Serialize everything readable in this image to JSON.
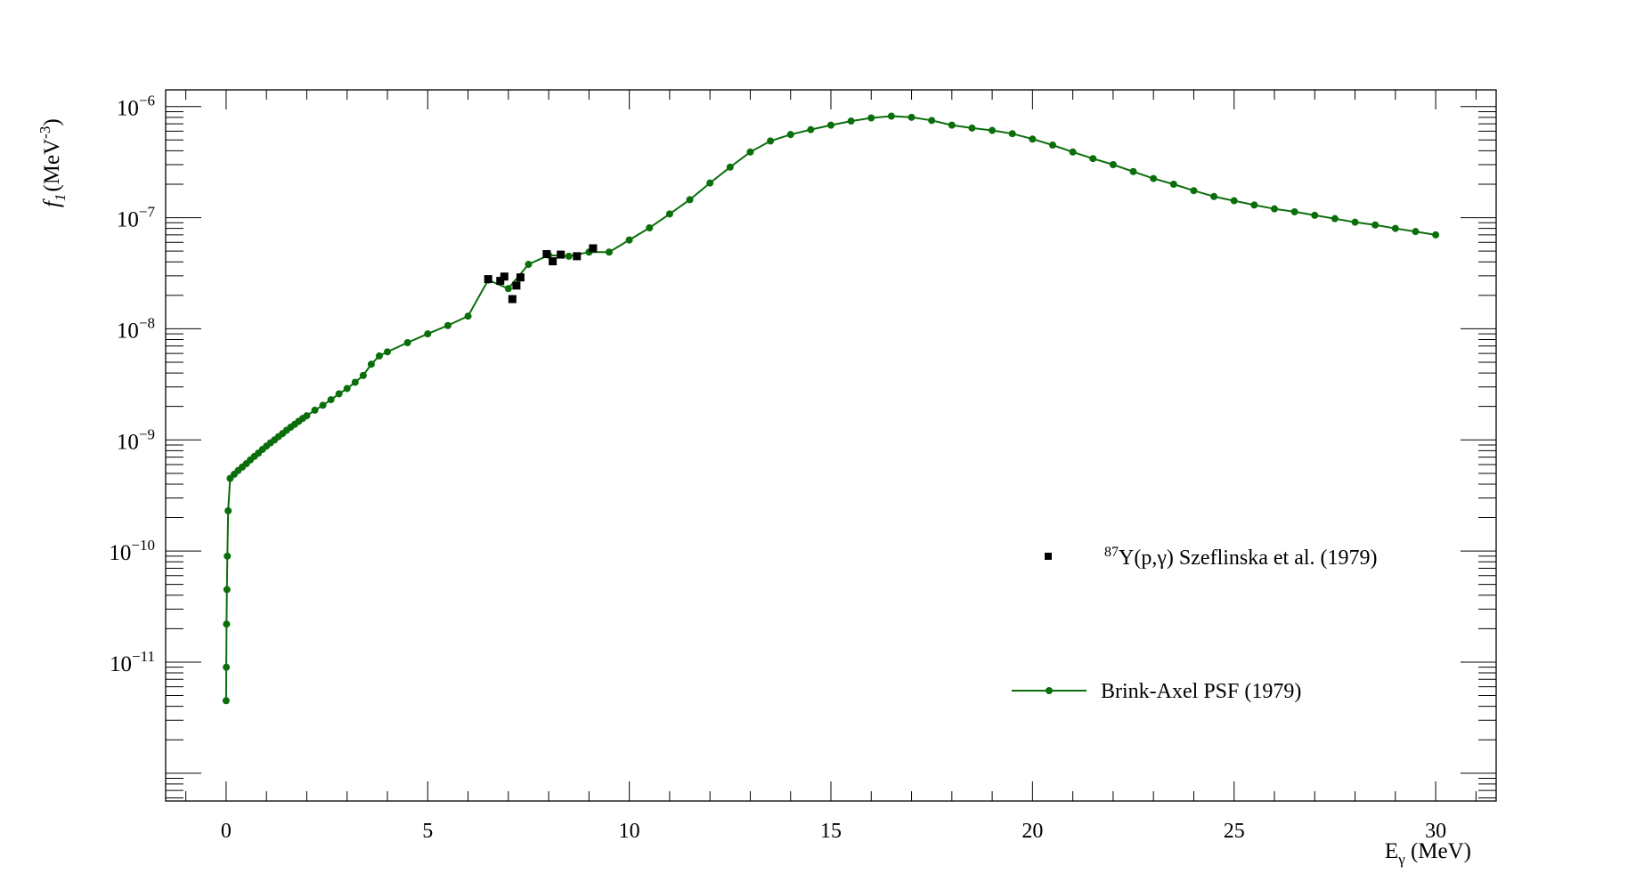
{
  "chart_data": {
    "type": "line",
    "xlabel_main": "E",
    "xlabel_sub": "γ",
    "xlabel_unit": " (MeV)",
    "ylabel_main": "f",
    "ylabel_sub": "1",
    "ylabel_unit": "(MeV",
    "ylabel_exp": "-3",
    "ylabel_close": ")",
    "xlim": [
      -1.5,
      31.5
    ],
    "ylim_log10": [
      -12.25,
      -5.85
    ],
    "y_scale": "log",
    "x_ticks": [
      "0",
      "5",
      "10",
      "15",
      "20",
      "25",
      "30"
    ],
    "y_ticks": [
      {
        "mantissa": "10",
        "exponent": "−11",
        "log": -11
      },
      {
        "mantissa": "10",
        "exponent": "−10",
        "log": -10
      },
      {
        "mantissa": "10",
        "exponent": "−9",
        "log": -9
      },
      {
        "mantissa": "10",
        "exponent": "−8",
        "log": -8
      },
      {
        "mantissa": "10",
        "exponent": "−7",
        "log": -7
      },
      {
        "mantissa": "10",
        "exponent": "−6",
        "log": -6
      }
    ],
    "grid": false,
    "legend_position": "right",
    "series": [
      {
        "name": "Brink-Axel PSF (1979)",
        "style": "line+markers",
        "color": "#0a6e0a",
        "x": [
          0.0,
          0.005,
          0.01,
          0.02,
          0.03,
          0.05,
          0.1,
          0.2,
          0.3,
          0.4,
          0.5,
          0.6,
          0.7,
          0.8,
          0.9,
          1.0,
          1.1,
          1.2,
          1.3,
          1.4,
          1.5,
          1.6,
          1.7,
          1.8,
          1.9,
          2.0,
          2.2,
          2.4,
          2.6,
          2.8,
          3.0,
          3.2,
          3.4,
          3.6,
          3.8,
          4.0,
          4.5,
          5.0,
          5.5,
          6.0,
          6.5,
          7.0,
          7.5,
          8.0,
          8.5,
          9.0,
          9.5,
          10.0,
          10.5,
          11.0,
          11.5,
          12.0,
          12.5,
          13.0,
          13.5,
          14.0,
          14.5,
          15.0,
          15.5,
          16.0,
          16.5,
          17.0,
          17.5,
          18.0,
          18.5,
          19.0,
          19.5,
          20.0,
          20.5,
          21.0,
          21.5,
          22.0,
          22.5,
          23.0,
          23.5,
          24.0,
          24.5,
          25.0,
          25.5,
          26.0,
          26.5,
          27.0,
          27.5,
          28.0,
          28.5,
          29.0,
          29.5,
          30.0
        ],
        "y": [
          4.5e-12,
          9e-12,
          2.2e-11,
          4.5e-11,
          9e-11,
          2.3e-10,
          4.5e-10,
          4.9e-10,
          5.3e-10,
          5.7e-10,
          6.1e-10,
          6.6e-10,
          7.1e-10,
          7.6e-10,
          8.2e-10,
          8.8e-10,
          9.4e-10,
          1e-09,
          1.07e-09,
          1.14e-09,
          1.22e-09,
          1.3e-09,
          1.38e-09,
          1.47e-09,
          1.56e-09,
          1.65e-09,
          1.85e-09,
          2.05e-09,
          2.3e-09,
          2.6e-09,
          2.9e-09,
          3.3e-09,
          3.8e-09,
          4.8e-09,
          5.7e-09,
          6.2e-09,
          7.5e-09,
          9e-09,
          1.07e-08,
          1.3e-08,
          2.75e-08,
          2.3e-08,
          3.8e-08,
          4.6e-08,
          4.5e-08,
          4.9e-08,
          4.9e-08,
          6.3e-08,
          8.1e-08,
          1.08e-07,
          1.45e-07,
          2.05e-07,
          2.85e-07,
          3.9e-07,
          4.9e-07,
          5.6e-07,
          6.2e-07,
          6.8e-07,
          7.4e-07,
          7.9e-07,
          8.2e-07,
          8e-07,
          7.5e-07,
          6.8e-07,
          6.4e-07,
          6.1e-07,
          5.7e-07,
          5.1e-07,
          4.5e-07,
          3.9e-07,
          3.4e-07,
          3e-07,
          2.6e-07,
          2.25e-07,
          2e-07,
          1.75e-07,
          1.55e-07,
          1.42e-07,
          1.3e-07,
          1.2e-07,
          1.13e-07,
          1.05e-07,
          9.8e-08,
          9.1e-08,
          8.6e-08,
          8e-08,
          7.5e-08,
          7e-08
        ]
      },
      {
        "name_sup": "87",
        "name": "Y(p,γ) Szeflinska et al. (1979)",
        "style": "markers",
        "marker": "square",
        "color": "#000000",
        "x": [
          6.5,
          6.8,
          6.9,
          7.1,
          7.2,
          7.3,
          7.95,
          8.1,
          8.3,
          8.7,
          9.1
        ],
        "y": [
          2.8e-08,
          2.7e-08,
          2.95e-08,
          1.85e-08,
          2.45e-08,
          2.9e-08,
          4.7e-08,
          4.05e-08,
          4.65e-08,
          4.5e-08,
          5.3e-08
        ]
      }
    ]
  }
}
